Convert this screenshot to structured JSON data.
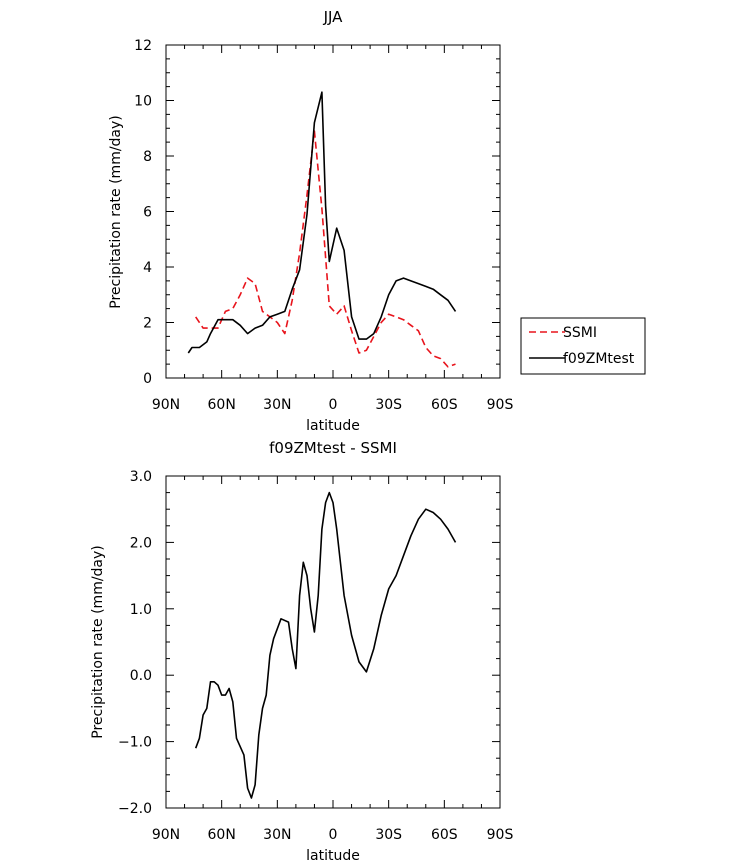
{
  "chart_data": [
    {
      "type": "line",
      "title": "JJA",
      "xlabel": "latitude",
      "ylabel": "Precipitation rate (mm/day)",
      "xlim": [
        90,
        -90
      ],
      "ylim": [
        0,
        12
      ],
      "xtick_values": [
        90,
        60,
        30,
        0,
        -30,
        -60,
        -90
      ],
      "xtick_labels": [
        "90N",
        "60N",
        "30N",
        "0",
        "30S",
        "60S",
        "90S"
      ],
      "ytick_values": [
        0,
        2,
        4,
        6,
        8,
        10,
        12
      ],
      "ytick_labels": [
        "0",
        "2",
        "4",
        "6",
        "8",
        "10",
        "12"
      ],
      "legend_position": "right",
      "series": [
        {
          "name": "SSMI",
          "color": "#e8141c",
          "dash": "dashed",
          "x": [
            74,
            70,
            66,
            62,
            58,
            54,
            50,
            46,
            42,
            38,
            34,
            30,
            26,
            22,
            18,
            14,
            10,
            6,
            2,
            -2,
            -6,
            -10,
            -14,
            -18,
            -22,
            -26,
            -30,
            -34,
            -38,
            -42,
            -46,
            -50,
            -54,
            -58,
            -62,
            -66
          ],
          "y": [
            2.2,
            1.8,
            1.8,
            1.8,
            2.4,
            2.5,
            3.0,
            3.6,
            3.4,
            2.4,
            2.2,
            2.0,
            1.6,
            2.8,
            4.5,
            6.6,
            8.9,
            6.1,
            2.6,
            2.3,
            2.6,
            1.7,
            0.9,
            1.0,
            1.5,
            2.0,
            2.3,
            2.2,
            2.1,
            1.9,
            1.7,
            1.1,
            0.8,
            0.7,
            0.4,
            0.5
          ]
        },
        {
          "name": "f09ZMtest",
          "color": "#000000",
          "dash": "solid",
          "x": [
            78,
            76,
            72,
            68,
            66,
            62,
            58,
            54,
            50,
            46,
            42,
            38,
            34,
            30,
            26,
            22,
            18,
            14,
            10,
            6,
            4,
            2,
            -2,
            -6,
            -10,
            -14,
            -18,
            -22,
            -26,
            -30,
            -34,
            -38,
            -42,
            -46,
            -50,
            -54,
            -58,
            -62,
            -66
          ],
          "y": [
            0.9,
            1.1,
            1.1,
            1.3,
            1.6,
            2.1,
            2.1,
            2.1,
            1.9,
            1.6,
            1.8,
            1.9,
            2.2,
            2.3,
            2.4,
            3.2,
            3.9,
            5.9,
            9.2,
            10.3,
            6.2,
            4.2,
            5.4,
            4.6,
            2.2,
            1.4,
            1.4,
            1.6,
            2.2,
            3.0,
            3.5,
            3.6,
            3.5,
            3.4,
            3.3,
            3.2,
            3.0,
            2.8,
            2.4
          ]
        }
      ]
    },
    {
      "type": "line",
      "title": "f09ZMtest - SSMI",
      "xlabel": "latitude",
      "ylabel": "Precipitation rate (mm/day)",
      "xlim": [
        90,
        -90
      ],
      "ylim": [
        -2.0,
        3.0
      ],
      "xtick_values": [
        90,
        60,
        30,
        0,
        -30,
        -60,
        -90
      ],
      "xtick_labels": [
        "90N",
        "60N",
        "30N",
        "0",
        "30S",
        "60S",
        "90S"
      ],
      "ytick_values": [
        -2,
        -1,
        0,
        1,
        2,
        3
      ],
      "ytick_labels": [
        "−2.0",
        "−1.0",
        "0.0",
        "1.0",
        "2.0",
        "3.0"
      ],
      "series": [
        {
          "color": "#000000",
          "dash": "solid",
          "x": [
            74,
            72,
            70,
            68,
            66,
            64,
            62,
            60,
            58,
            56,
            54,
            52,
            48,
            46,
            44,
            42,
            40,
            38,
            36,
            34,
            32,
            28,
            24,
            22,
            20,
            18,
            16,
            14,
            12,
            10,
            8,
            6,
            4,
            2,
            0,
            -2,
            -4,
            -6,
            -10,
            -14,
            -18,
            -22,
            -26,
            -30,
            -34,
            -38,
            -42,
            -46,
            -50,
            -54,
            -58,
            -62,
            -66
          ],
          "y": [
            -1.1,
            -0.95,
            -0.6,
            -0.5,
            -0.1,
            -0.1,
            -0.15,
            -0.3,
            -0.3,
            -0.2,
            -0.4,
            -0.95,
            -1.2,
            -1.7,
            -1.85,
            -1.65,
            -0.9,
            -0.5,
            -0.3,
            0.3,
            0.55,
            0.85,
            0.8,
            0.4,
            0.1,
            1.2,
            1.7,
            1.5,
            1.0,
            0.65,
            1.2,
            2.2,
            2.6,
            2.75,
            2.6,
            2.2,
            1.7,
            1.2,
            0.6,
            0.2,
            0.05,
            0.4,
            0.9,
            1.3,
            1.5,
            1.8,
            2.1,
            2.35,
            2.5,
            2.45,
            2.35,
            2.2,
            2.0
          ]
        }
      ]
    }
  ]
}
